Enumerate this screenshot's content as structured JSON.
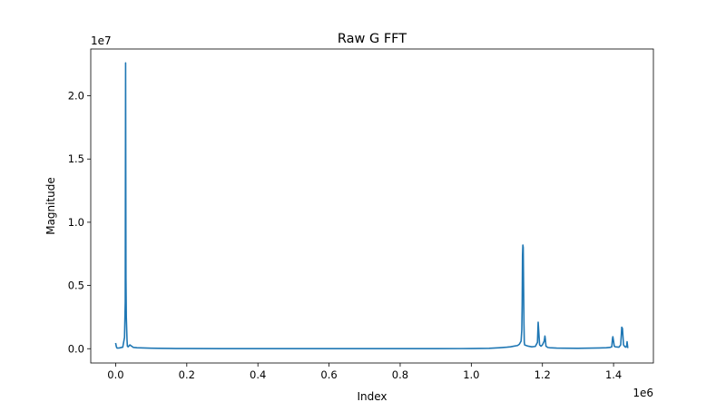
{
  "chart_data": {
    "type": "line",
    "title": "Raw G FFT",
    "xlabel": "Index",
    "ylabel": "Magnitude",
    "x_offset_label": "1e6",
    "y_offset_label": "1e7",
    "xlim": [
      -70000,
      1512000
    ],
    "ylim": [
      -1130000,
      23700000
    ],
    "x_ticks": [
      0,
      200000,
      400000,
      600000,
      800000,
      1000000,
      1200000,
      1400000
    ],
    "x_tick_labels": [
      "0.0",
      "0.2",
      "0.4",
      "0.6",
      "0.8",
      "1.0",
      "1.2",
      "1.4"
    ],
    "y_ticks": [
      0,
      5000000,
      10000000,
      15000000,
      20000000
    ],
    "y_tick_labels": [
      "0.0",
      "0.5",
      "1.0",
      "1.5",
      "2.0"
    ],
    "grid": false,
    "legend": "none",
    "series_color": "#1f77b4",
    "series": [
      {
        "x": [
          0,
          2000,
          4000,
          10000,
          20000,
          25000,
          27000,
          28000,
          28500,
          29000,
          30000,
          32000,
          33000,
          35000,
          40000,
          45000,
          50000,
          60000,
          80000,
          100000,
          120000,
          150000,
          170000,
          200000,
          300000,
          400000,
          500000,
          600000,
          700000,
          800000,
          900000,
          1000000,
          1050000,
          1080000,
          1100000,
          1110000,
          1120000,
          1130000,
          1135000,
          1140000,
          1142000,
          1143000,
          1144000,
          1145000,
          1146000,
          1147000,
          1148000,
          1149000,
          1150000,
          1160000,
          1170000,
          1180000,
          1186000,
          1188000,
          1190000,
          1192000,
          1196000,
          1200000,
          1205000,
          1207000,
          1208000,
          1210000,
          1215000,
          1220000,
          1240000,
          1260000,
          1300000,
          1340000,
          1360000,
          1380000,
          1390000,
          1395000,
          1397000,
          1398000,
          1400000,
          1402000,
          1405000,
          1415000,
          1420000,
          1422000,
          1423000,
          1425000,
          1428000,
          1432000,
          1435000,
          1437000,
          1438000,
          1440000
        ],
        "y": [
          450000,
          150000,
          50000,
          60000,
          120000,
          900000,
          3700000,
          22600000,
          14000000,
          5600000,
          2500000,
          700000,
          200000,
          150000,
          300000,
          200000,
          100000,
          80000,
          60000,
          40000,
          30000,
          20000,
          15000,
          10000,
          8000,
          6000,
          5000,
          5000,
          5000,
          5000,
          6000,
          10000,
          30000,
          80000,
          120000,
          150000,
          200000,
          250000,
          350000,
          600000,
          1500000,
          3500000,
          7400000,
          8200000,
          8000000,
          5000000,
          2000000,
          500000,
          300000,
          200000,
          150000,
          180000,
          500000,
          2100000,
          1200000,
          300000,
          200000,
          300000,
          600000,
          1000000,
          800000,
          200000,
          100000,
          80000,
          50000,
          40000,
          30000,
          50000,
          60000,
          80000,
          100000,
          150000,
          800000,
          950000,
          600000,
          200000,
          150000,
          120000,
          300000,
          1200000,
          1700000,
          1600000,
          300000,
          150000,
          120000,
          250000,
          550000,
          50000
        ]
      }
    ]
  }
}
